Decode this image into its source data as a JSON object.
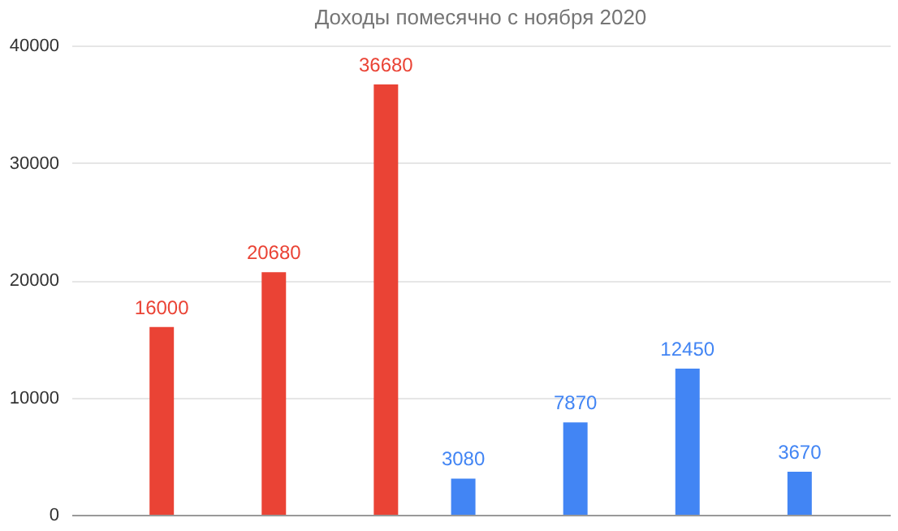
{
  "chart_data": {
    "type": "bar",
    "title": "Доходы помесячно с ноября 2020",
    "categories": [
      null,
      null,
      null,
      null,
      null,
      null,
      null
    ],
    "series": [
      {
        "color": "#4285f4",
        "values": [
          null,
          null,
          null,
          3080,
          7870,
          12450,
          3670
        ]
      },
      {
        "color": "#ea4335",
        "values": [
          16000,
          20680,
          36680,
          null,
          null,
          null,
          null
        ]
      }
    ],
    "ylim": [
      0,
      40000
    ],
    "yticks": [
      0,
      10000,
      20000,
      30000,
      40000
    ],
    "grid": "y",
    "data_labels": true,
    "tick_labels": "y"
  }
}
